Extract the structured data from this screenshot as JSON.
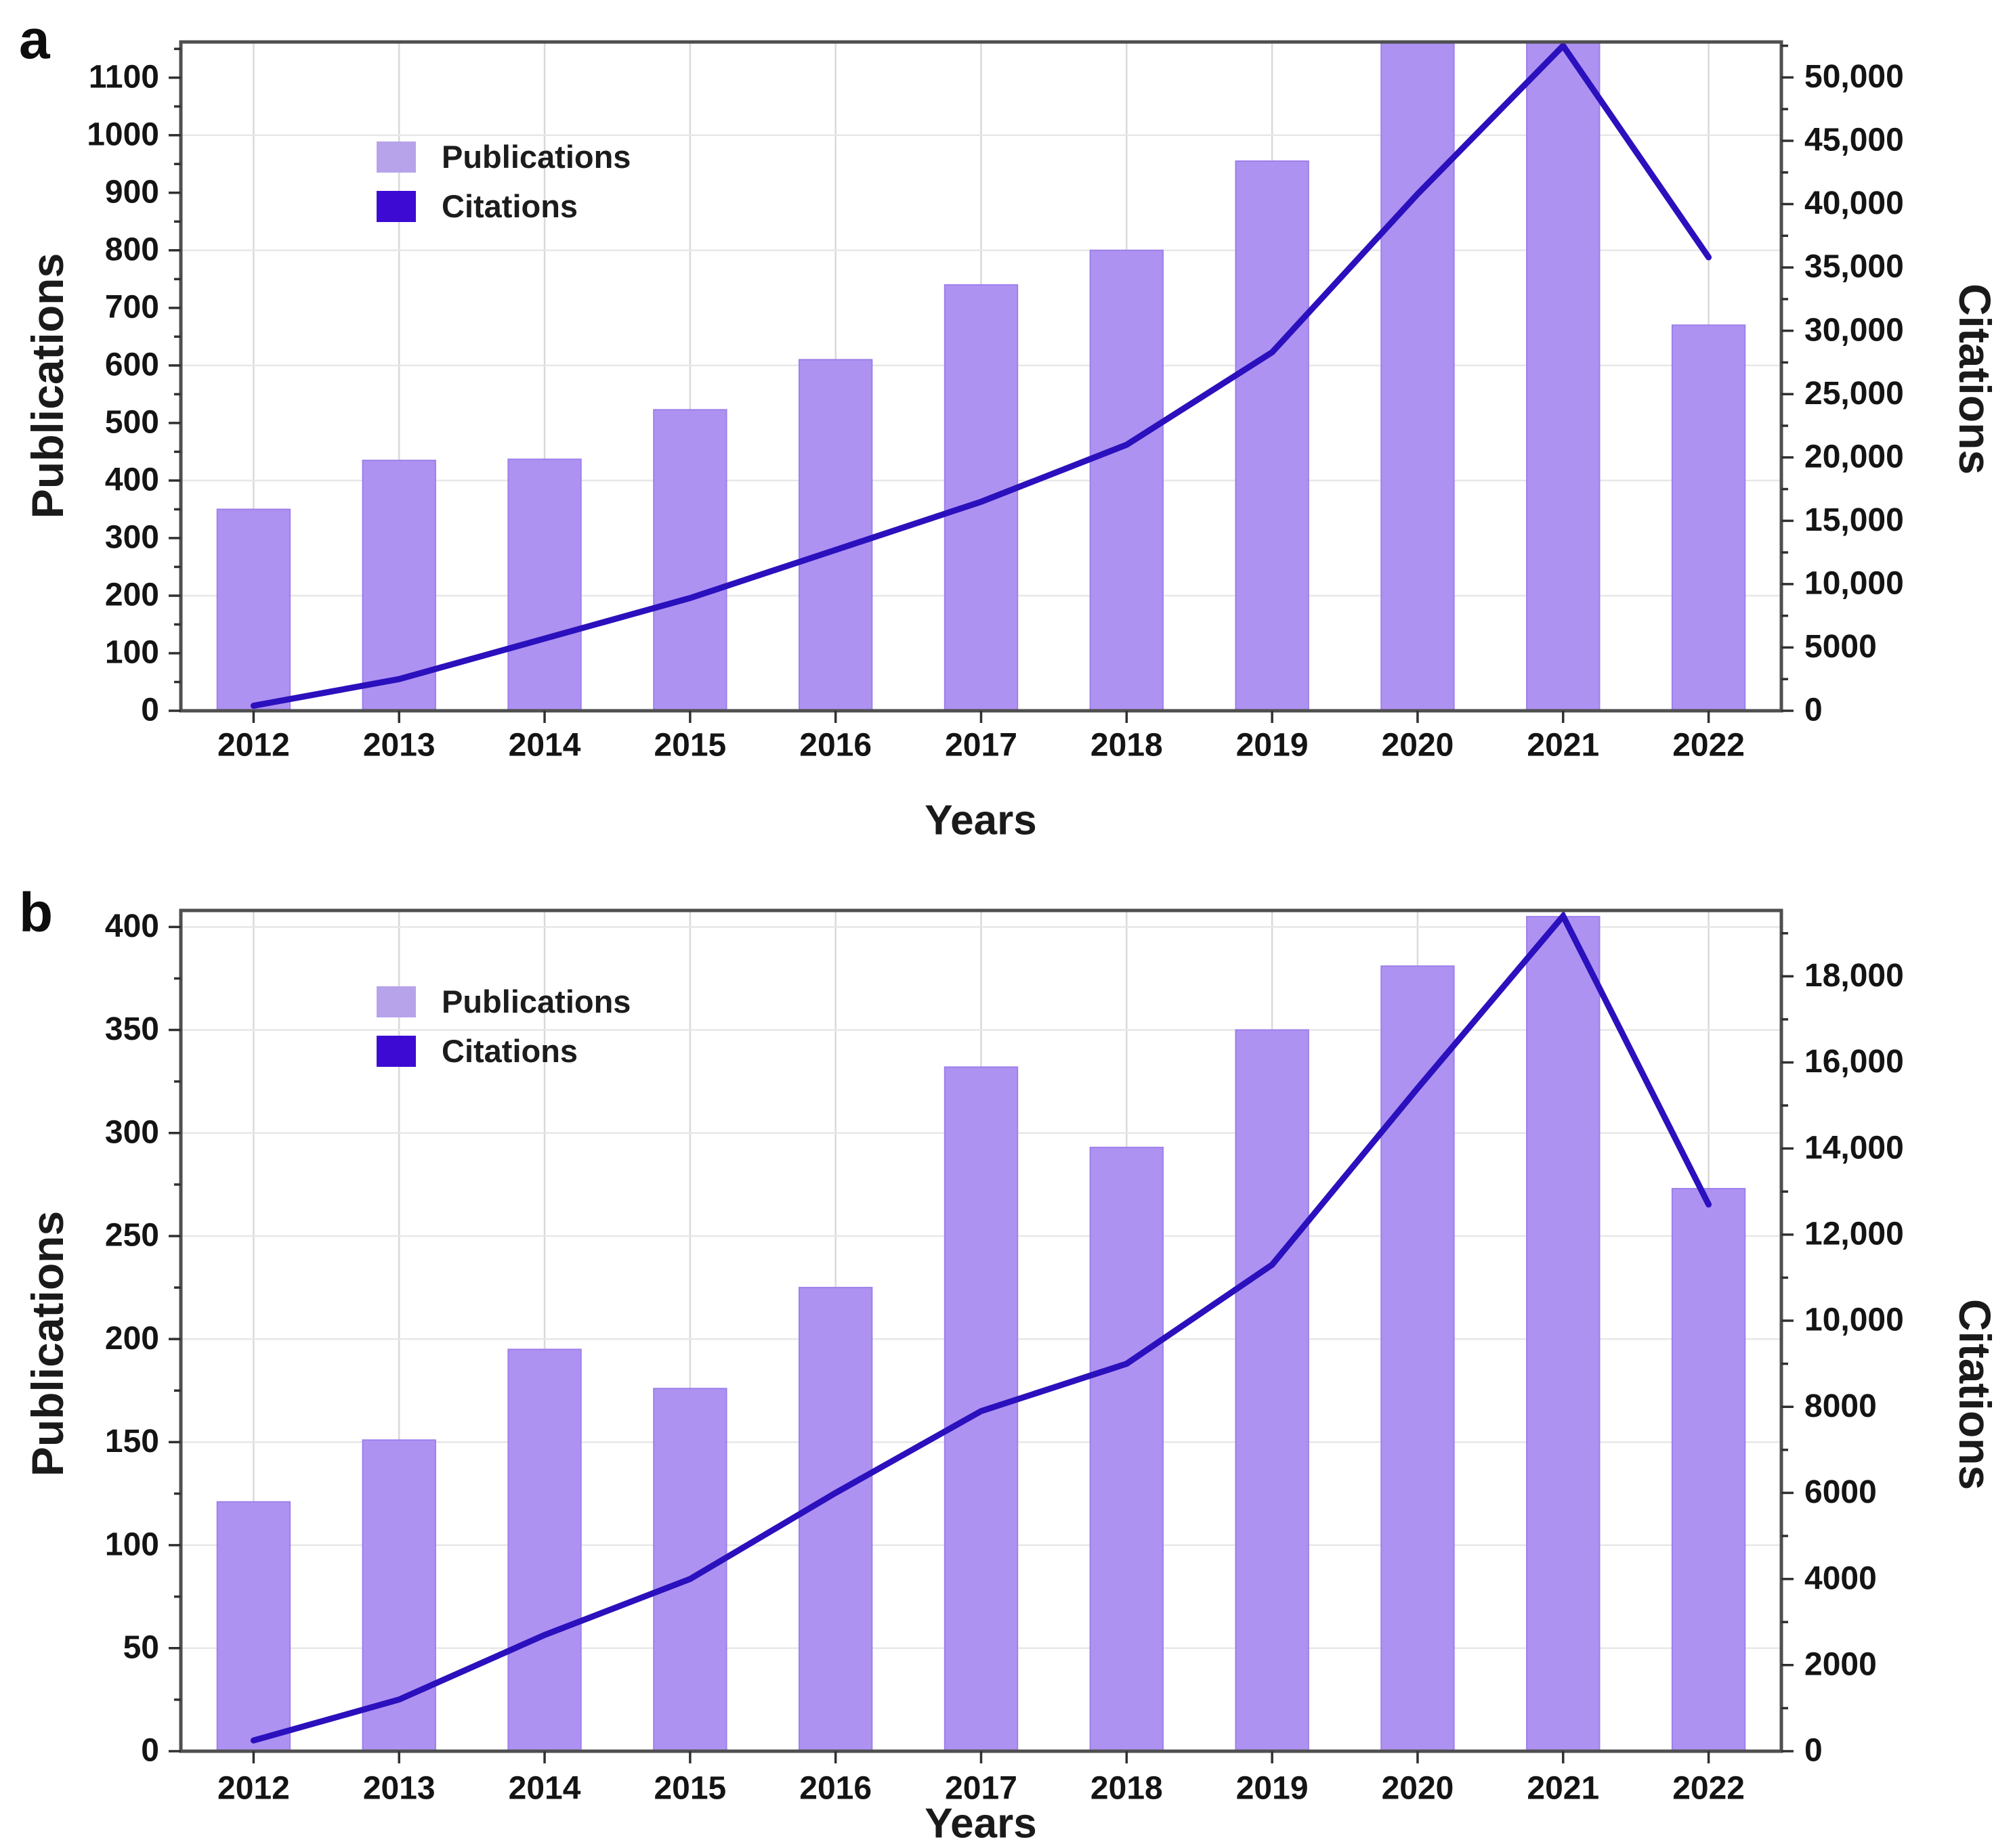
{
  "chart_data": [
    {
      "id": "a",
      "panel_label": "a",
      "type": "bar+line",
      "categories": [
        "2012",
        "2013",
        "2014",
        "2015",
        "2016",
        "2017",
        "2018",
        "2019",
        "2020",
        "2021",
        "2022"
      ],
      "series": [
        {
          "name": "Publications",
          "type": "bar",
          "axis": "left",
          "values": [
            350,
            435,
            437,
            523,
            610,
            740,
            800,
            955,
            1160,
            1160,
            670
          ]
        },
        {
          "name": "Citations",
          "type": "line",
          "axis": "right",
          "values": [
            400,
            2500,
            5700,
            8900,
            12700,
            16500,
            21000,
            28300,
            40800,
            52500,
            35800
          ]
        }
      ],
      "note": "2020 and 2021 publication bars and the 2021 citation peak are clipped at the top of the axes",
      "xlabel": "Years",
      "ylabel_left": "Publications",
      "ylabel_right": "Citations",
      "ylim_left": [
        0,
        1162
      ],
      "ylim_right": [
        0,
        52800
      ],
      "yticks_left": {
        "values": [
          0,
          100,
          200,
          300,
          400,
          500,
          600,
          700,
          800,
          900,
          1000,
          1100
        ],
        "labels": [
          "0",
          "100",
          "200",
          "300",
          "400",
          "500",
          "600",
          "700",
          "800",
          "900",
          "1000",
          "1100"
        ]
      },
      "yticks_right": {
        "values": [
          0,
          5000,
          10000,
          15000,
          20000,
          25000,
          30000,
          35000,
          40000,
          45000,
          50000
        ],
        "labels": [
          "0",
          "5000",
          "10,000",
          "15,000",
          "20,000",
          "25,000",
          "30,000",
          "35,000",
          "40,000",
          "45,000",
          "50,000"
        ]
      },
      "minor_left_step": 50,
      "minor_right_step": 2500,
      "h_grid_values": [
        200,
        400,
        600,
        800,
        1000
      ],
      "legend_position": "upper-left-inside",
      "grid": "light gray horizontal and vertical gridlines"
    },
    {
      "id": "b",
      "panel_label": "b",
      "type": "bar+line",
      "categories": [
        "2012",
        "2013",
        "2014",
        "2015",
        "2016",
        "2017",
        "2018",
        "2019",
        "2020",
        "2021",
        "2022"
      ],
      "series": [
        {
          "name": "Publications",
          "type": "bar",
          "axis": "left",
          "values": [
            121,
            151,
            195,
            176,
            225,
            332,
            293,
            350,
            381,
            405,
            273
          ]
        },
        {
          "name": "Citations",
          "type": "line",
          "axis": "right",
          "values": [
            250,
            1200,
            2700,
            4000,
            6000,
            7900,
            9000,
            11300,
            15400,
            19400,
            12700
          ]
        }
      ],
      "note": "2021 publication bar and citation peak reach the top of the axes",
      "xlabel": "Years",
      "ylabel_left": "Publications",
      "ylabel_right": "Citations",
      "ylim_left": [
        0,
        408
      ],
      "ylim_right": [
        0,
        19530
      ],
      "yticks_left": {
        "values": [
          0,
          50,
          100,
          150,
          200,
          250,
          300,
          350,
          400
        ],
        "labels": [
          "0",
          "50",
          "100",
          "150",
          "200",
          "250",
          "300",
          "350",
          "400"
        ]
      },
      "yticks_right": {
        "values": [
          0,
          2000,
          4000,
          6000,
          8000,
          10000,
          12000,
          14000,
          16000,
          18000
        ],
        "labels": [
          "0",
          "2000",
          "4000",
          "6000",
          "8000",
          "10,000",
          "12,000",
          "14,000",
          "16,000",
          "18,000"
        ]
      },
      "minor_left_step": 25,
      "minor_right_step": 1000,
      "h_grid_values": [
        50,
        100,
        150,
        200,
        250,
        300,
        350,
        400
      ],
      "legend_position": "upper-left-inside",
      "grid": "light gray horizontal and vertical gridlines"
    }
  ],
  "colors": {
    "bar_fill": "#ae92f2",
    "bar_edge": "#9d80ea",
    "line": "#2b10bd",
    "legend_publications_swatch": "#b7a3ea",
    "legend_citations_swatch": "#3c0ad2",
    "grid_horizontal": "#e7e7e7",
    "grid_vertical": "#d9d9d9",
    "frame": "#4f4f4f",
    "tick": "#303030",
    "text": "#141414",
    "background": "#ffffff"
  }
}
